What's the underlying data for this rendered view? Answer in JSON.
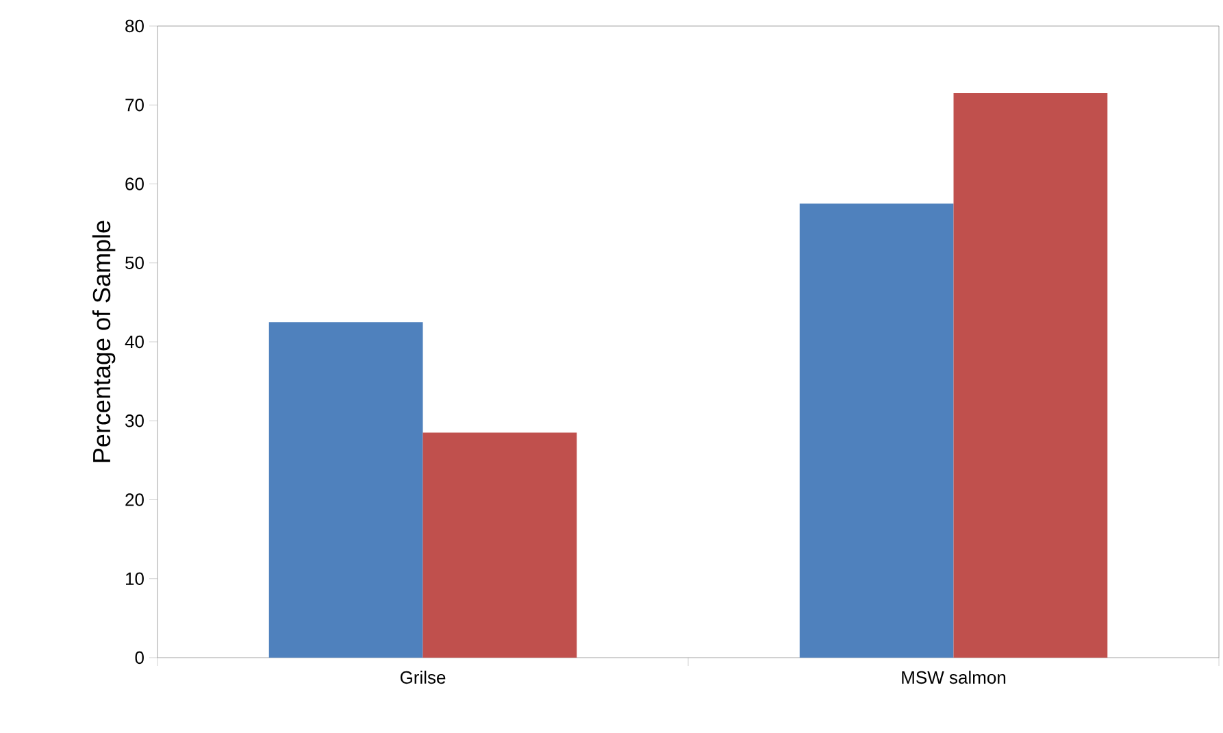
{
  "chart_data": {
    "type": "bar",
    "ylabel": "Percentage of Sample",
    "categories": [
      "Grilse",
      "MSW salmon"
    ],
    "series": [
      {
        "color": "#4f81bd",
        "values": [
          42.5,
          57.5
        ]
      },
      {
        "color": "#c0504d",
        "values": [
          28.5,
          71.5
        ]
      }
    ],
    "ylim": [
      0,
      80
    ],
    "yticks": [
      0,
      10,
      20,
      30,
      40,
      50,
      60,
      70,
      80
    ],
    "grid": false
  }
}
